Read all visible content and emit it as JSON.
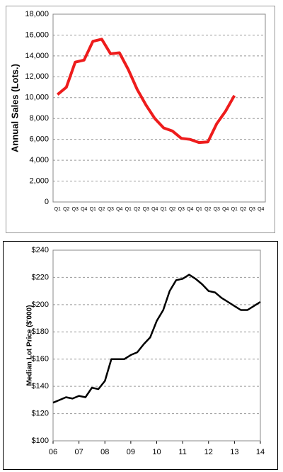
{
  "chart_data": [
    {
      "type": "line",
      "y_label": "Annual Sales (Lots.)",
      "categories": [
        "Q1",
        "Q2",
        "Q3",
        "Q4",
        "Q1",
        "Q2",
        "Q3",
        "Q4",
        "Q1",
        "Q2",
        "Q3",
        "Q4",
        "Q1",
        "Q2",
        "Q3",
        "Q4",
        "Q1",
        "Q2",
        "Q3",
        "Q4",
        "Q1",
        "Q2",
        "Q3",
        "Q4"
      ],
      "series": [
        {
          "name": "Annual Sales",
          "color": "#ee1c1c",
          "values": [
            10300,
            11000,
            13400,
            13600,
            15400,
            15600,
            14200,
            14300,
            12700,
            10800,
            9300,
            8000,
            7100,
            6800,
            6100,
            6000,
            5700,
            5750,
            7500,
            8700,
            10200,
            null,
            null,
            null
          ]
        }
      ],
      "ylim": [
        0,
        18000
      ],
      "yticks": [
        0,
        {
          "value": 2000,
          "label": "2,000"
        },
        {
          "value": 4000,
          "label": "4,000"
        },
        {
          "value": 6000,
          "label": "6,000"
        },
        {
          "value": 8000,
          "label": "8,000"
        },
        {
          "value": 10000,
          "label": "10,000"
        },
        {
          "value": 12000,
          "label": "12,000"
        },
        {
          "value": 14000,
          "label": "14,000"
        },
        {
          "value": 16000,
          "label": "16,000"
        },
        {
          "value": 18000,
          "label": "18,000"
        }
      ],
      "grid": true
    },
    {
      "type": "line",
      "y_label": "Median Lot Price ($'000)",
      "x": [
        2006,
        2006.25,
        2006.5,
        2006.75,
        2007,
        2007.25,
        2007.5,
        2007.75,
        2008,
        2008.25,
        2008.5,
        2008.75,
        2009,
        2009.25,
        2009.5,
        2009.75,
        2010,
        2010.25,
        2010.5,
        2010.75,
        2011,
        2011.25,
        2011.5,
        2011.75,
        2012,
        2012.25,
        2012.5,
        2012.75,
        2013,
        2013.25,
        2013.5,
        2013.75,
        2014
      ],
      "series": [
        {
          "name": "Median Lot Price",
          "color": "#000000",
          "values": [
            128,
            130,
            132,
            131,
            133,
            132,
            139,
            138,
            144,
            160,
            160,
            160,
            163,
            165,
            171,
            176,
            188,
            196,
            210,
            218,
            219,
            222,
            219,
            215,
            210,
            209,
            205,
            202,
            199,
            196,
            196,
            199,
            202
          ]
        }
      ],
      "xlim": [
        2006,
        2014
      ],
      "xticks": [
        {
          "value": 2006,
          "label": "06"
        },
        {
          "value": 2007,
          "label": "07"
        },
        {
          "value": 2008,
          "label": "08"
        },
        {
          "value": 2009,
          "label": "09"
        },
        {
          "value": 2010,
          "label": "10"
        },
        {
          "value": 2011,
          "label": "11"
        },
        {
          "value": 2012,
          "label": "12"
        },
        {
          "value": 2013,
          "label": "13"
        },
        {
          "value": 2014,
          "label": "14"
        }
      ],
      "ylim": [
        100,
        240
      ],
      "yticks": [
        {
          "value": 100,
          "label": "$100"
        },
        {
          "value": 120,
          "label": "$120"
        },
        {
          "value": 140,
          "label": "$140"
        },
        {
          "value": 160,
          "label": "$160"
        },
        {
          "value": 180,
          "label": "$180"
        },
        {
          "value": 200,
          "label": "$200"
        },
        {
          "value": 220,
          "label": "$220"
        },
        {
          "value": 240,
          "label": "$240"
        }
      ],
      "grid": true
    }
  ]
}
